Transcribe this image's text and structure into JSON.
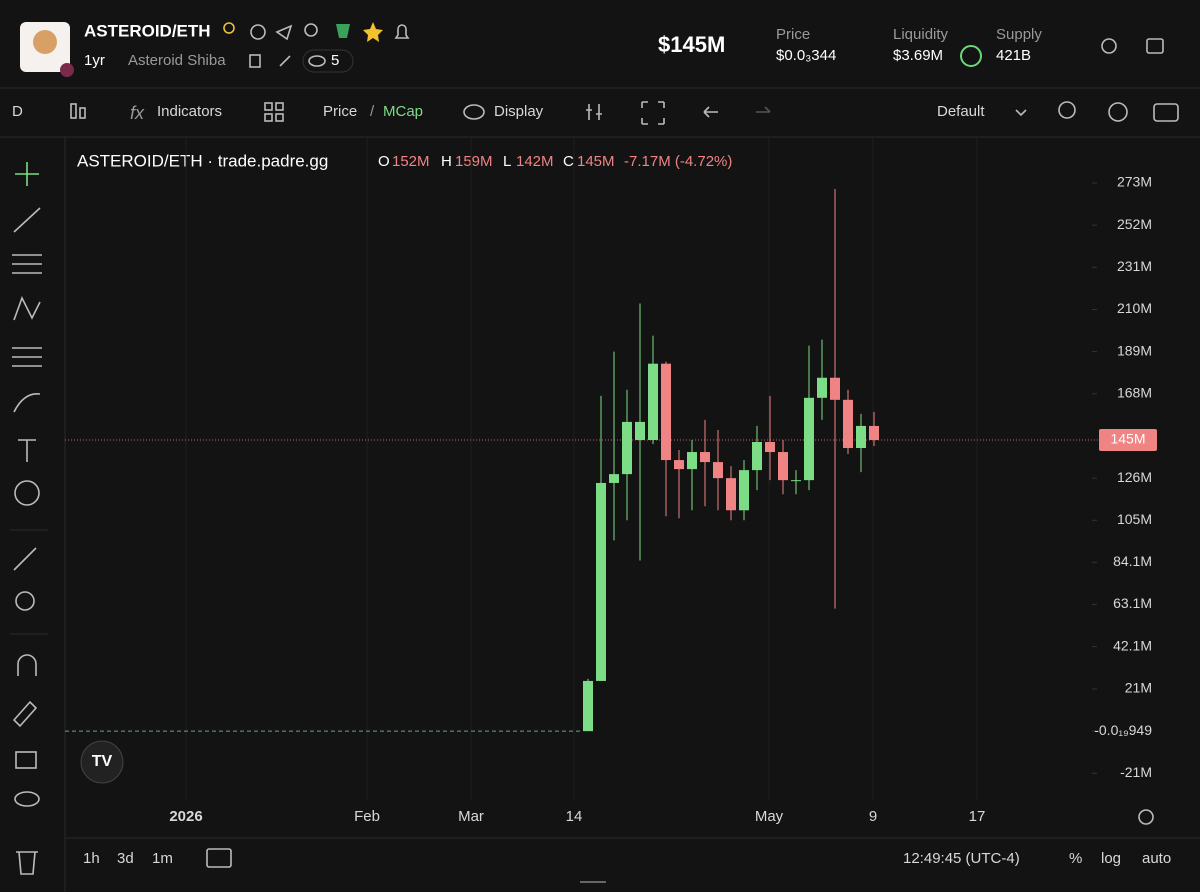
{
  "header": {
    "symbol": "ASTEROID/ETH",
    "age": "1yr",
    "name": "Asteroid Shiba",
    "watchers": "5",
    "market_cap": "$145M",
    "stats": [
      {
        "label": "Price",
        "value": "$0.0₃344"
      },
      {
        "label": "Liquidity",
        "value": "$3.69M"
      },
      {
        "label": "Supply",
        "value": "421B"
      }
    ]
  },
  "toolbar": {
    "interval": "D",
    "indicators": "Indicators",
    "price": "Price",
    "separator": "/",
    "mcap": "MCap",
    "display": "Display",
    "layout": "Default"
  },
  "footer": {
    "ranges": [
      "1h",
      "3d",
      "1m"
    ],
    "clock": "12:49:45 (UTC-4)",
    "percent": "%",
    "log": "log",
    "auto": "auto"
  },
  "chart_data": {
    "type": "candlestick",
    "legend": {
      "symbol": "ASTEROID/ETH · trade.padre.gg",
      "o": "O",
      "open": "152M",
      "h": "H",
      "high": "159M",
      "l": "L",
      "low": "142M",
      "c": "C",
      "close": "145M",
      "change": "-7.17M (-4.72%)"
    },
    "xticks": [
      "2026",
      "Feb",
      "Mar",
      "14",
      "May",
      "9",
      "17"
    ],
    "open": [
      0,
      25,
      123.6,
      128,
      145,
      145,
      183,
      135,
      130.5,
      139,
      134,
      126,
      110,
      130,
      144,
      139,
      124.5,
      125,
      166,
      176,
      165,
      141,
      152
    ],
    "close": [
      25,
      123.6,
      128,
      154,
      154,
      183,
      135,
      130.5,
      139,
      134,
      126,
      110,
      130,
      144,
      139,
      125,
      125,
      166,
      176,
      165,
      141,
      152,
      145
    ],
    "high": [
      26,
      167,
      189,
      170,
      213,
      197,
      184,
      140,
      145,
      155,
      150,
      132,
      135,
      152,
      167,
      145,
      130,
      192,
      195,
      270,
      170,
      158,
      159
    ],
    "low": [
      0,
      25,
      95,
      105,
      85,
      143,
      107,
      106,
      110,
      112,
      110,
      105,
      105,
      120,
      125,
      118,
      118,
      120,
      155,
      61,
      138,
      129,
      142
    ],
    "up_color": "#7ddc86",
    "down_color": "#f08383",
    "ylim": [
      -34.3,
      295.9
    ],
    "yticks": [
      {
        "value": 273,
        "label": "273M"
      },
      {
        "value": 252,
        "label": "252M"
      },
      {
        "value": 231,
        "label": "231M"
      },
      {
        "value": 210,
        "label": "210M"
      },
      {
        "value": 189,
        "label": "189M"
      },
      {
        "value": 168,
        "label": "168M"
      },
      {
        "value": 126,
        "label": "126M"
      },
      {
        "value": 105,
        "label": "105M"
      },
      {
        "value": 84.1,
        "label": "84.1M"
      },
      {
        "value": 63.1,
        "label": "63.1M"
      },
      {
        "value": 42.1,
        "label": "42.1M"
      },
      {
        "value": 21,
        "label": "21M"
      },
      {
        "value": 0,
        "label": "-0.0₁₉949"
      },
      {
        "value": -21,
        "label": "-21M"
      }
    ],
    "price_line": {
      "value": 145,
      "label": "145M"
    }
  }
}
